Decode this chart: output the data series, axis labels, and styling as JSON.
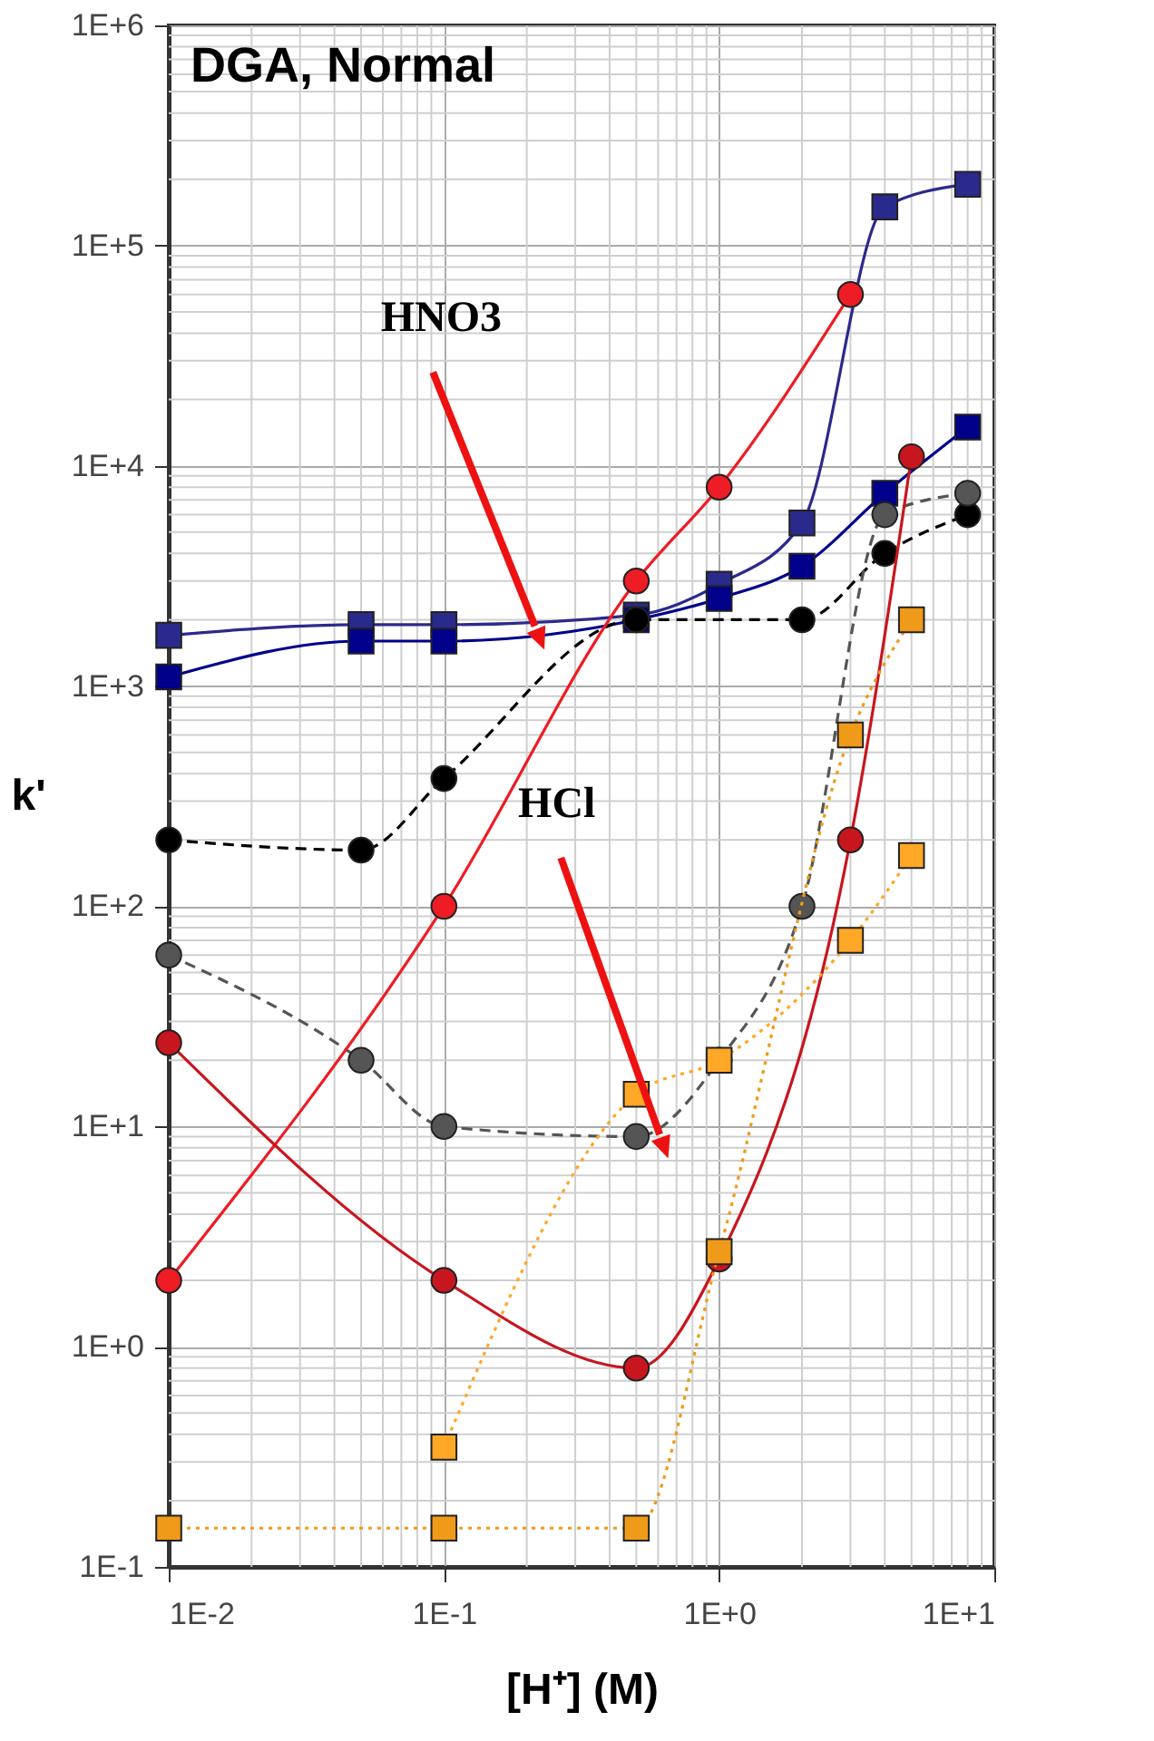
{
  "chart_data": {
    "type": "line",
    "title": "DGA, Normal",
    "xlabel": "[H⁺] (M)",
    "ylabel": "k'",
    "log": "xy",
    "grid": true,
    "xlim": [
      0.01,
      10
    ],
    "xticks": [
      {
        "value": 0.01,
        "label": "1E-2"
      },
      {
        "value": 0.1,
        "label": "1E-1"
      },
      {
        "value": 1,
        "label": "1E+0"
      },
      {
        "value": 10,
        "label": "1E+1"
      }
    ],
    "ylim": [
      0.1,
      1000000
    ],
    "yticks": [
      {
        "value": 0.1,
        "label": "1E-1"
      },
      {
        "value": 1,
        "label": "1E+0"
      },
      {
        "value": 10,
        "label": "1E+1"
      },
      {
        "value": 100,
        "label": "1E+2"
      },
      {
        "value": 1000,
        "label": "1E+3"
      },
      {
        "value": 10000,
        "label": "1E+4"
      },
      {
        "value": 100000,
        "label": "1E+5"
      },
      {
        "value": 1000000,
        "label": "1E+6"
      }
    ],
    "annotations": [
      "HNO3",
      "HCl"
    ],
    "series": [
      {
        "color": "#2a2a8c",
        "marker": "square",
        "line_style": "solid",
        "x": [
          0.01,
          0.05,
          0.1,
          0.5,
          1,
          2,
          4,
          8
        ],
        "values": [
          1700,
          1900,
          1900,
          2100,
          2900,
          5500,
          150000,
          190000
        ]
      },
      {
        "color": "#00008b",
        "marker": "square",
        "line_style": "solid",
        "x": [
          0.01,
          0.05,
          0.1,
          0.5,
          1,
          2,
          4,
          8
        ],
        "values": [
          1100,
          1600,
          1600,
          2000,
          2500,
          3500,
          7500,
          15000
        ]
      },
      {
        "color": "#000000",
        "marker": "circle",
        "line_style": "dashed",
        "x": [
          0.01,
          0.05,
          0.1,
          0.5,
          2,
          4,
          8
        ],
        "values": [
          200,
          180,
          380,
          2000,
          2000,
          4000,
          6000
        ]
      },
      {
        "color": "#555555",
        "marker": "circle",
        "line_style": "dashed",
        "x": [
          0.01,
          0.05,
          0.1,
          0.5,
          1,
          2,
          4,
          8
        ],
        "values": [
          60,
          20,
          10,
          9,
          20,
          100,
          6000,
          7500
        ]
      },
      {
        "color": "#ee1c24",
        "marker": "circle",
        "line_style": "solid",
        "x": [
          0.01,
          0.1,
          0.5,
          1,
          3
        ],
        "values": [
          2,
          100,
          3000,
          8000,
          60000
        ]
      },
      {
        "color": "#c8161e",
        "marker": "circle",
        "line_style": "solid",
        "x": [
          0.01,
          0.1,
          0.5,
          1,
          3,
          5
        ],
        "values": [
          24,
          2,
          0.8,
          2.5,
          200,
          11000
        ]
      },
      {
        "color": "#ffa726",
        "marker": "square",
        "line_style": "dotted",
        "x": [
          0.1,
          0.5,
          1,
          3,
          5
        ],
        "values": [
          0.35,
          14,
          20,
          70,
          170
        ]
      },
      {
        "color": "#f09a1a",
        "marker": "square",
        "line_style": "dotted",
        "x": [
          0.01,
          0.1,
          0.5,
          1,
          3,
          5
        ],
        "values": [
          0.15,
          0.15,
          0.15,
          2.7,
          600,
          2000
        ]
      }
    ]
  }
}
